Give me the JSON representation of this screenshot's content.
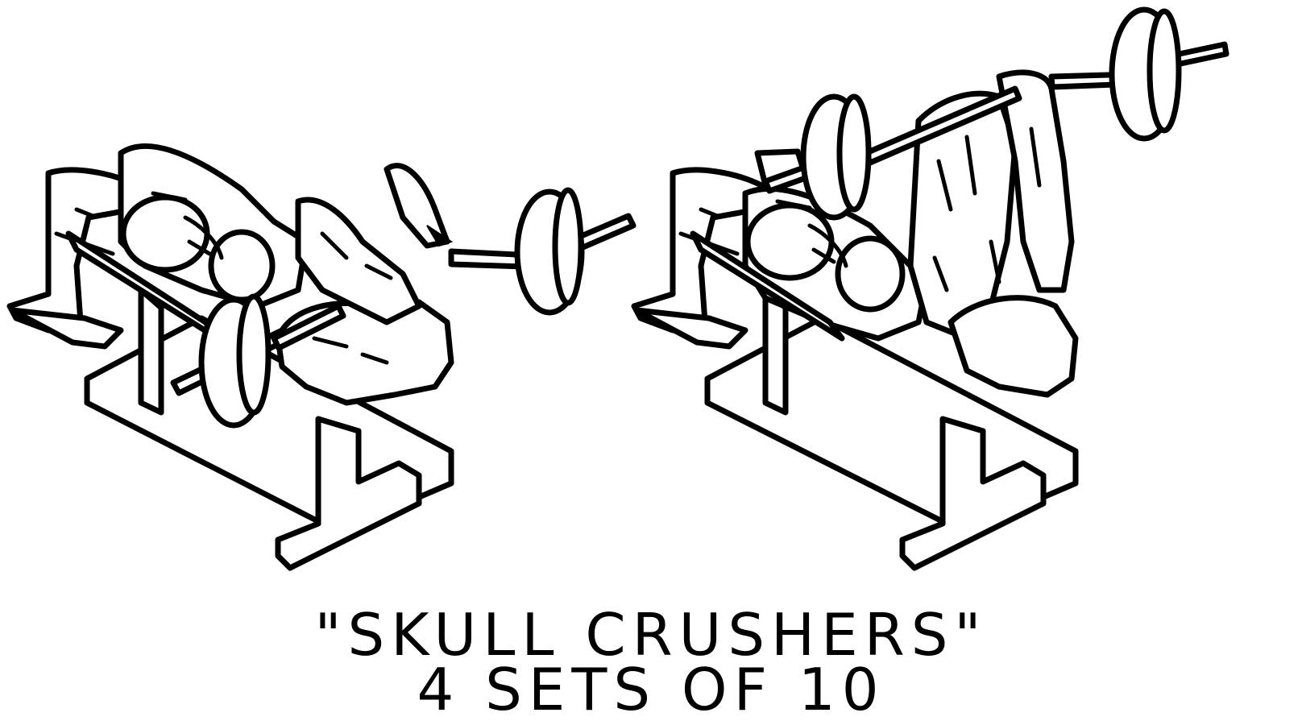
{
  "caption": {
    "exercise_name": "\"SKULL CRUSHERS\"",
    "prescription": "4 SETS OF 10"
  },
  "illustrations": [
    {
      "position": "start",
      "description_icon": "skull-crusher-lowered-bar-illustration"
    },
    {
      "position": "finish",
      "description_icon": "skull-crusher-raised-bar-illustration"
    }
  ],
  "colors": {
    "ink": "#000000",
    "background": "#ffffff"
  }
}
